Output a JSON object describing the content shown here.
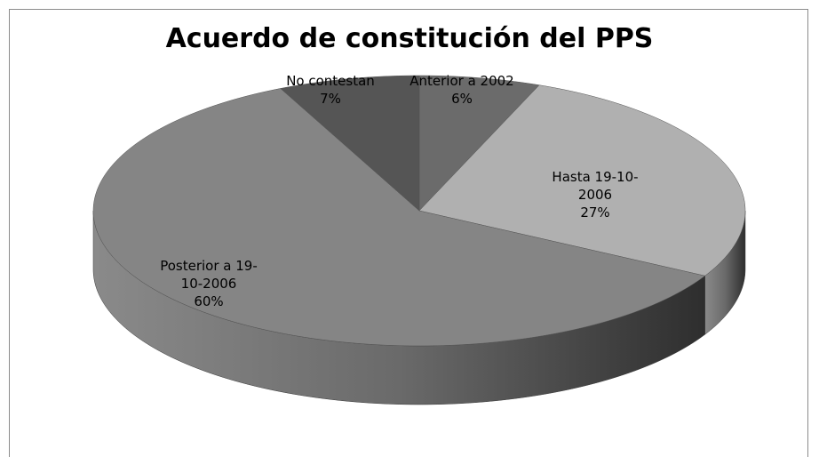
{
  "chart_data": {
    "type": "pie",
    "title": "Acuerdo de constitución del PPS",
    "categories": [
      "Anterior a 2002",
      "Hasta 19-10-2006",
      "Posterior a 19-10-2006",
      "No contestan"
    ],
    "values": [
      6,
      27,
      60,
      7
    ],
    "value_labels": [
      "6%",
      "27%",
      "60%",
      "7%"
    ],
    "colors": [
      "#6b6b6b",
      "#b0b0b0",
      "#858585",
      "#555555"
    ]
  }
}
